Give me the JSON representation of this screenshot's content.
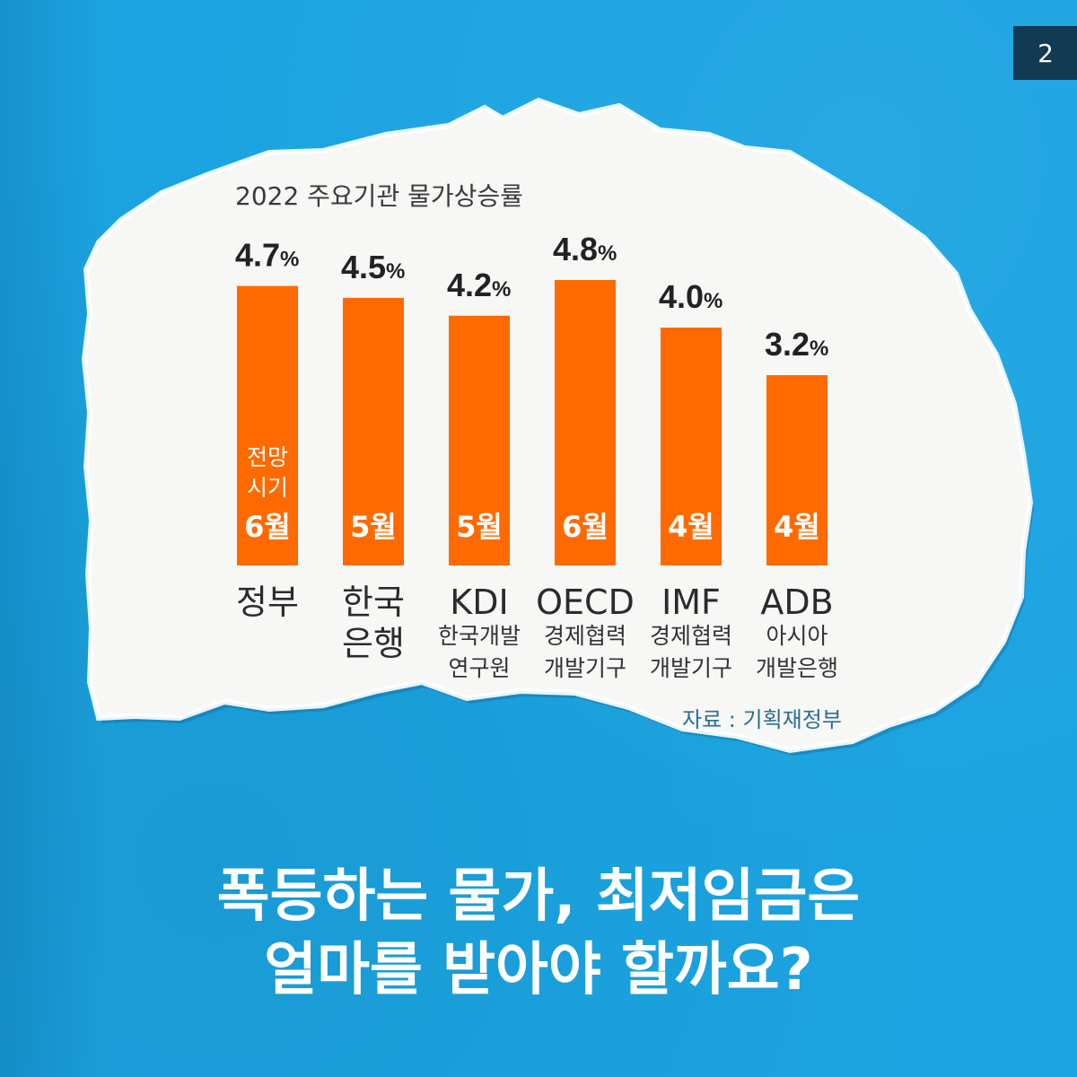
{
  "page_number": "2",
  "chart_data": {
    "type": "bar",
    "title": "2022 주요기관 물가상승률",
    "categories": [
      "정부",
      "한국은행",
      "KDI",
      "OECD",
      "IMF",
      "ADB"
    ],
    "category_lines": [
      [
        "정부"
      ],
      [
        "한국",
        "은행"
      ],
      [
        "KDI"
      ],
      [
        "OECD"
      ],
      [
        "IMF"
      ],
      [
        "ADB"
      ]
    ],
    "subtitles": [
      [],
      [],
      [
        "한국개발",
        "연구원"
      ],
      [
        "경제협력",
        "개발기구"
      ],
      [
        "경제협력",
        "개발기구"
      ],
      [
        "아시아",
        "개발은행"
      ]
    ],
    "values": [
      4.7,
      4.5,
      4.2,
      4.8,
      4.0,
      3.2
    ],
    "value_labels": [
      "4.7",
      "4.5",
      "4.2",
      "4.8",
      "4.0",
      "3.2"
    ],
    "unit": "%",
    "forecast_month_caption": [
      "전망",
      "시기"
    ],
    "forecast_months": [
      "6월",
      "5월",
      "5월",
      "6월",
      "4월",
      "4월"
    ],
    "ylim": [
      0,
      4.8
    ],
    "grid": false,
    "bar_color": "#ff6a00"
  },
  "source": "자료 : 기획재정부",
  "headline": {
    "line1": "폭등하는 물가, 최저임금은",
    "line2": "얼마를 받아야 할까요?"
  },
  "colors": {
    "background": "#1ba4e1",
    "paper": "#f7f7f5",
    "bar": "#ff6a00",
    "page_number_box": "#123a52"
  }
}
